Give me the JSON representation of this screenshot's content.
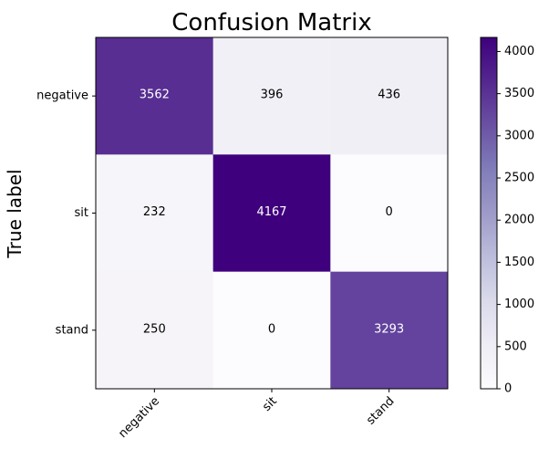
{
  "chart_data": {
    "type": "heatmap",
    "title": "Confusion Matrix",
    "ylabel": "True label",
    "xlabel": "",
    "x_categories": [
      "negative",
      "sit",
      "stand"
    ],
    "y_categories": [
      "negative",
      "sit",
      "stand"
    ],
    "values": [
      [
        3562,
        396,
        436
      ],
      [
        232,
        4167,
        0
      ],
      [
        250,
        0,
        3293
      ]
    ],
    "colormap": "Purples",
    "colorbar": {
      "range": [
        0,
        4167
      ],
      "ticks": [
        0,
        500,
        1000,
        1500,
        2000,
        2500,
        3000,
        3500,
        4000
      ]
    },
    "text_color_threshold": 2083.5
  }
}
